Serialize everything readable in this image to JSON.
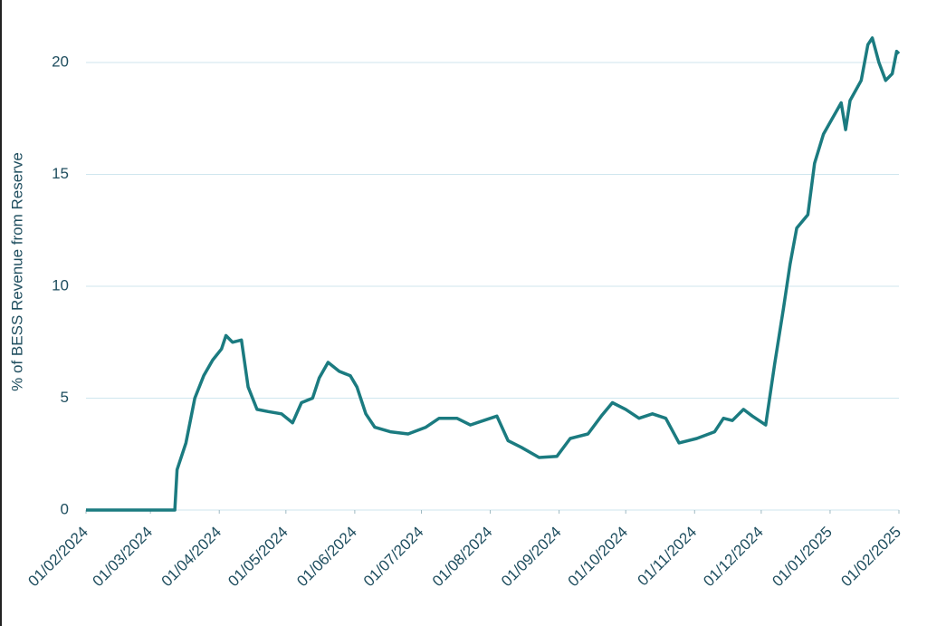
{
  "chart_data": {
    "type": "line",
    "ylabel": "% of BESS Revenue from Reserve",
    "x": [
      "2024-02-01",
      "2024-03-01",
      "2024-03-12",
      "2024-03-13",
      "2024-03-17",
      "2024-03-21",
      "2024-03-25",
      "2024-03-29",
      "2024-04-02",
      "2024-04-04",
      "2024-04-07",
      "2024-04-11",
      "2024-04-14",
      "2024-04-18",
      "2024-04-23",
      "2024-04-29",
      "2024-05-04",
      "2024-05-08",
      "2024-05-13",
      "2024-05-16",
      "2024-05-20",
      "2024-05-25",
      "2024-05-30",
      "2024-06-02",
      "2024-06-06",
      "2024-06-10",
      "2024-06-17",
      "2024-06-25",
      "2024-07-03",
      "2024-07-09",
      "2024-07-17",
      "2024-07-23",
      "2024-07-29",
      "2024-08-04",
      "2024-08-09",
      "2024-08-15",
      "2024-08-23",
      "2024-08-31",
      "2024-09-06",
      "2024-09-14",
      "2024-09-20",
      "2024-09-25",
      "2024-10-01",
      "2024-10-07",
      "2024-10-13",
      "2024-10-19",
      "2024-10-25",
      "2024-11-02",
      "2024-11-10",
      "2024-11-14",
      "2024-11-18",
      "2024-11-23",
      "2024-11-27",
      "2024-12-03",
      "2024-12-07",
      "2024-12-11",
      "2024-12-14",
      "2024-12-17",
      "2024-12-22",
      "2024-12-25",
      "2024-12-29",
      "2025-01-02",
      "2025-01-06",
      "2025-01-08",
      "2025-01-10",
      "2025-01-15",
      "2025-01-18",
      "2025-01-20",
      "2025-01-23",
      "2025-01-26",
      "2025-01-29",
      "2025-01-31",
      "2025-02-01"
    ],
    "series": [
      {
        "name": "% of BESS Revenue from Reserve",
        "color": "#1b7b80",
        "values": [
          0,
          0,
          0,
          1.8,
          3,
          5,
          6,
          6.7,
          7.2,
          7.8,
          7.5,
          7.6,
          5.5,
          4.5,
          4.4,
          4.3,
          3.9,
          4.8,
          5.0,
          5.9,
          6.6,
          6.2,
          6.0,
          5.5,
          4.3,
          3.7,
          3.5,
          3.4,
          3.7,
          4.1,
          4.1,
          3.8,
          4.0,
          4.2,
          3.1,
          2.8,
          2.35,
          2.4,
          3.2,
          3.4,
          4.2,
          4.8,
          4.5,
          4.1,
          4.3,
          4.1,
          3.0,
          3.2,
          3.5,
          4.1,
          4.0,
          4.5,
          4.2,
          3.8,
          6.5,
          9.0,
          11.0,
          12.6,
          13.2,
          15.5,
          16.8,
          17.5,
          18.2,
          17.0,
          18.3,
          19.2,
          20.8,
          21.1,
          20.0,
          19.2,
          19.5,
          20.5,
          20.4
        ]
      }
    ],
    "xlim": [
      "2024-02-01",
      "2025-02-01"
    ],
    "xticks": [
      {
        "value": "2024-02-01",
        "label": "01/02/2024"
      },
      {
        "value": "2024-03-01",
        "label": "01/03/2024"
      },
      {
        "value": "2024-04-01",
        "label": "01/04/2024"
      },
      {
        "value": "2024-05-01",
        "label": "01/05/2024"
      },
      {
        "value": "2024-06-01",
        "label": "01/06/2024"
      },
      {
        "value": "2024-07-01",
        "label": "01/07/2024"
      },
      {
        "value": "2024-08-01",
        "label": "01/08/2024"
      },
      {
        "value": "2024-09-01",
        "label": "01/09/2024"
      },
      {
        "value": "2024-10-01",
        "label": "01/10/2024"
      },
      {
        "value": "2024-11-01",
        "label": "01/11/2024"
      },
      {
        "value": "2024-12-01",
        "label": "01/12/2024"
      },
      {
        "value": "2025-01-01",
        "label": "01/01/2025"
      },
      {
        "value": "2025-02-01",
        "label": "01/02/2025"
      }
    ],
    "ylim": [
      0,
      21.5
    ],
    "yticks": [
      0,
      5,
      10,
      15,
      20
    ],
    "grid": true
  }
}
